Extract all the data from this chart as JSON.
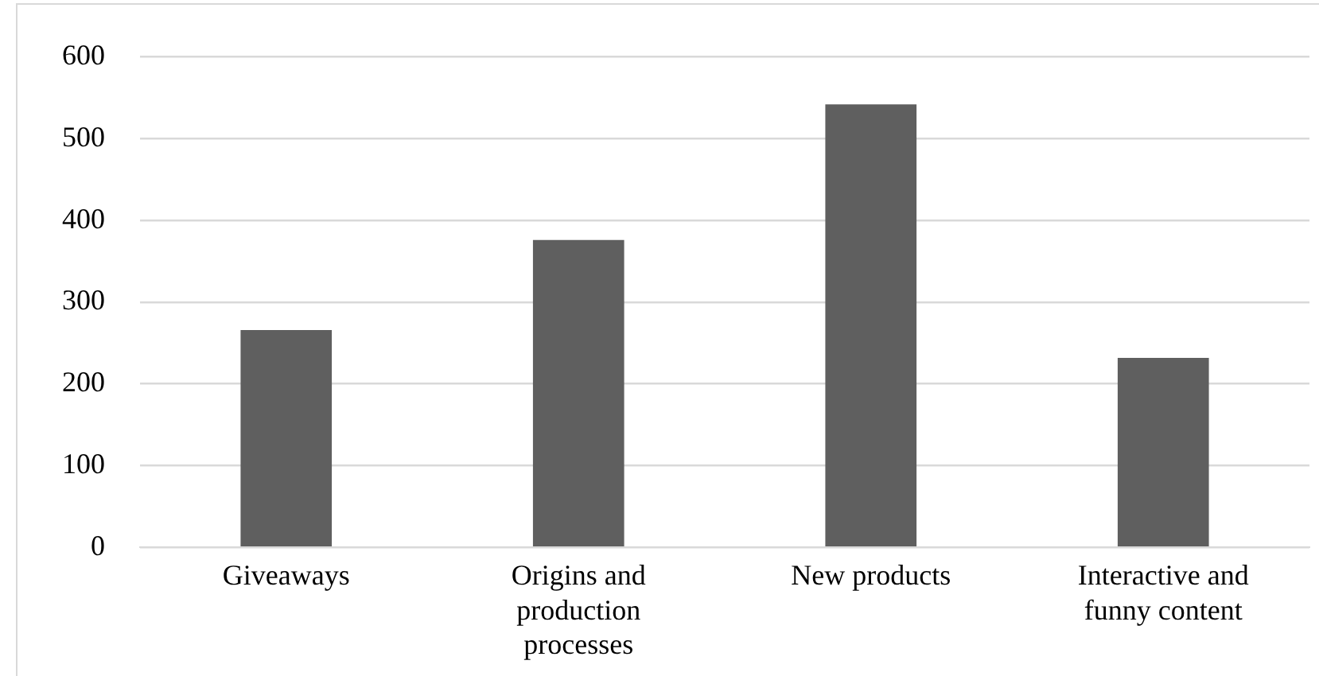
{
  "chart_data": {
    "type": "bar",
    "categories": [
      "Giveaways",
      "Origins and production processes",
      "New products",
      "Interactive and funny content"
    ],
    "values": [
      266,
      376,
      542,
      232
    ],
    "color": "#5f5f5f",
    "ylim": [
      0,
      600
    ],
    "yticks": [
      0,
      100,
      200,
      300,
      400,
      500,
      600
    ],
    "grid": "y"
  }
}
